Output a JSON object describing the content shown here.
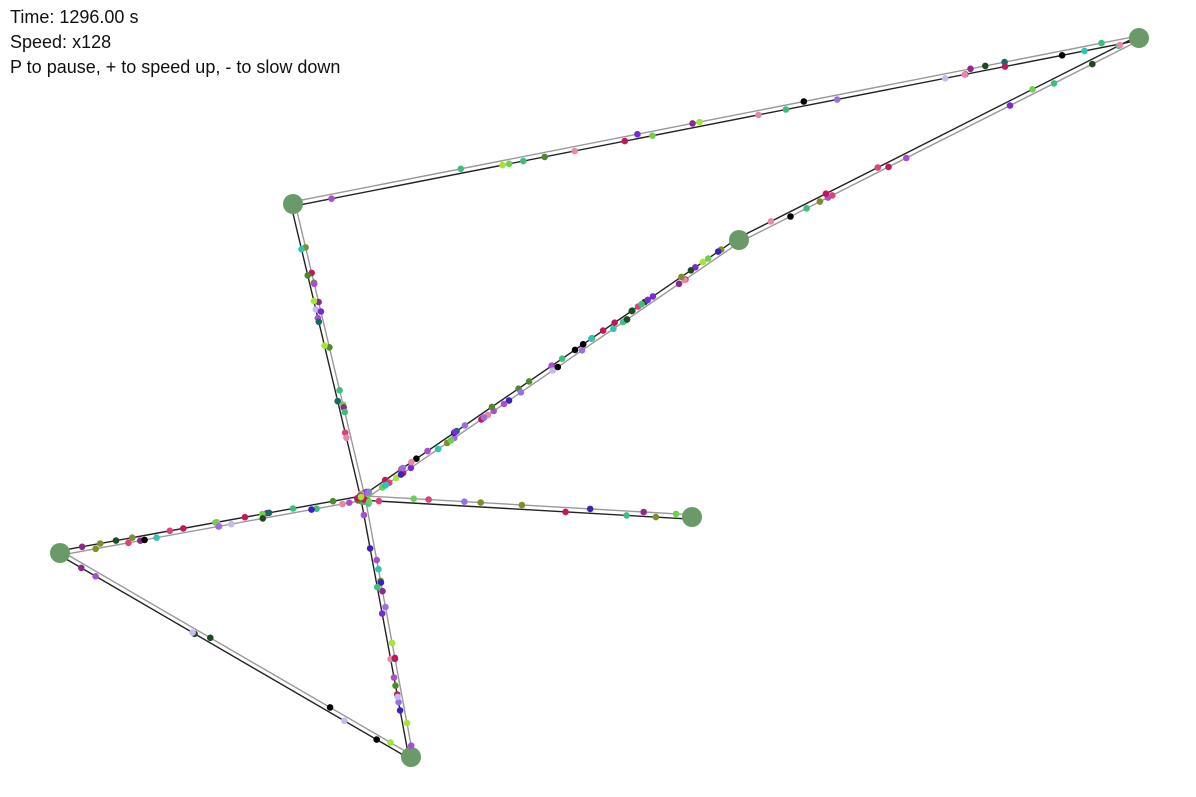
{
  "hud": {
    "time_label": "Time:",
    "time_value": "1296.00",
    "time_unit": "s",
    "speed_label": "Speed:",
    "speed_value": "x128",
    "instructions": "P to pause, + to speed up, - to slow down"
  },
  "colors": {
    "background": "#ffffff",
    "node": "#6a9a68",
    "road_dark": "#222222",
    "road_light": "#999999",
    "vehicle_palette": [
      "#000000",
      "#1f4a1f",
      "#136b63",
      "#3d1fc2",
      "#7a2bd6",
      "#a64fcf",
      "#8c2a8c",
      "#c2185b",
      "#e0407a",
      "#e887a8",
      "#c8b8ee",
      "#9a6fe0",
      "#3bbf7a",
      "#2ec4b6",
      "#6fcf4f",
      "#a3e635",
      "#4c8a2a",
      "#7b8f2a"
    ]
  }
}
